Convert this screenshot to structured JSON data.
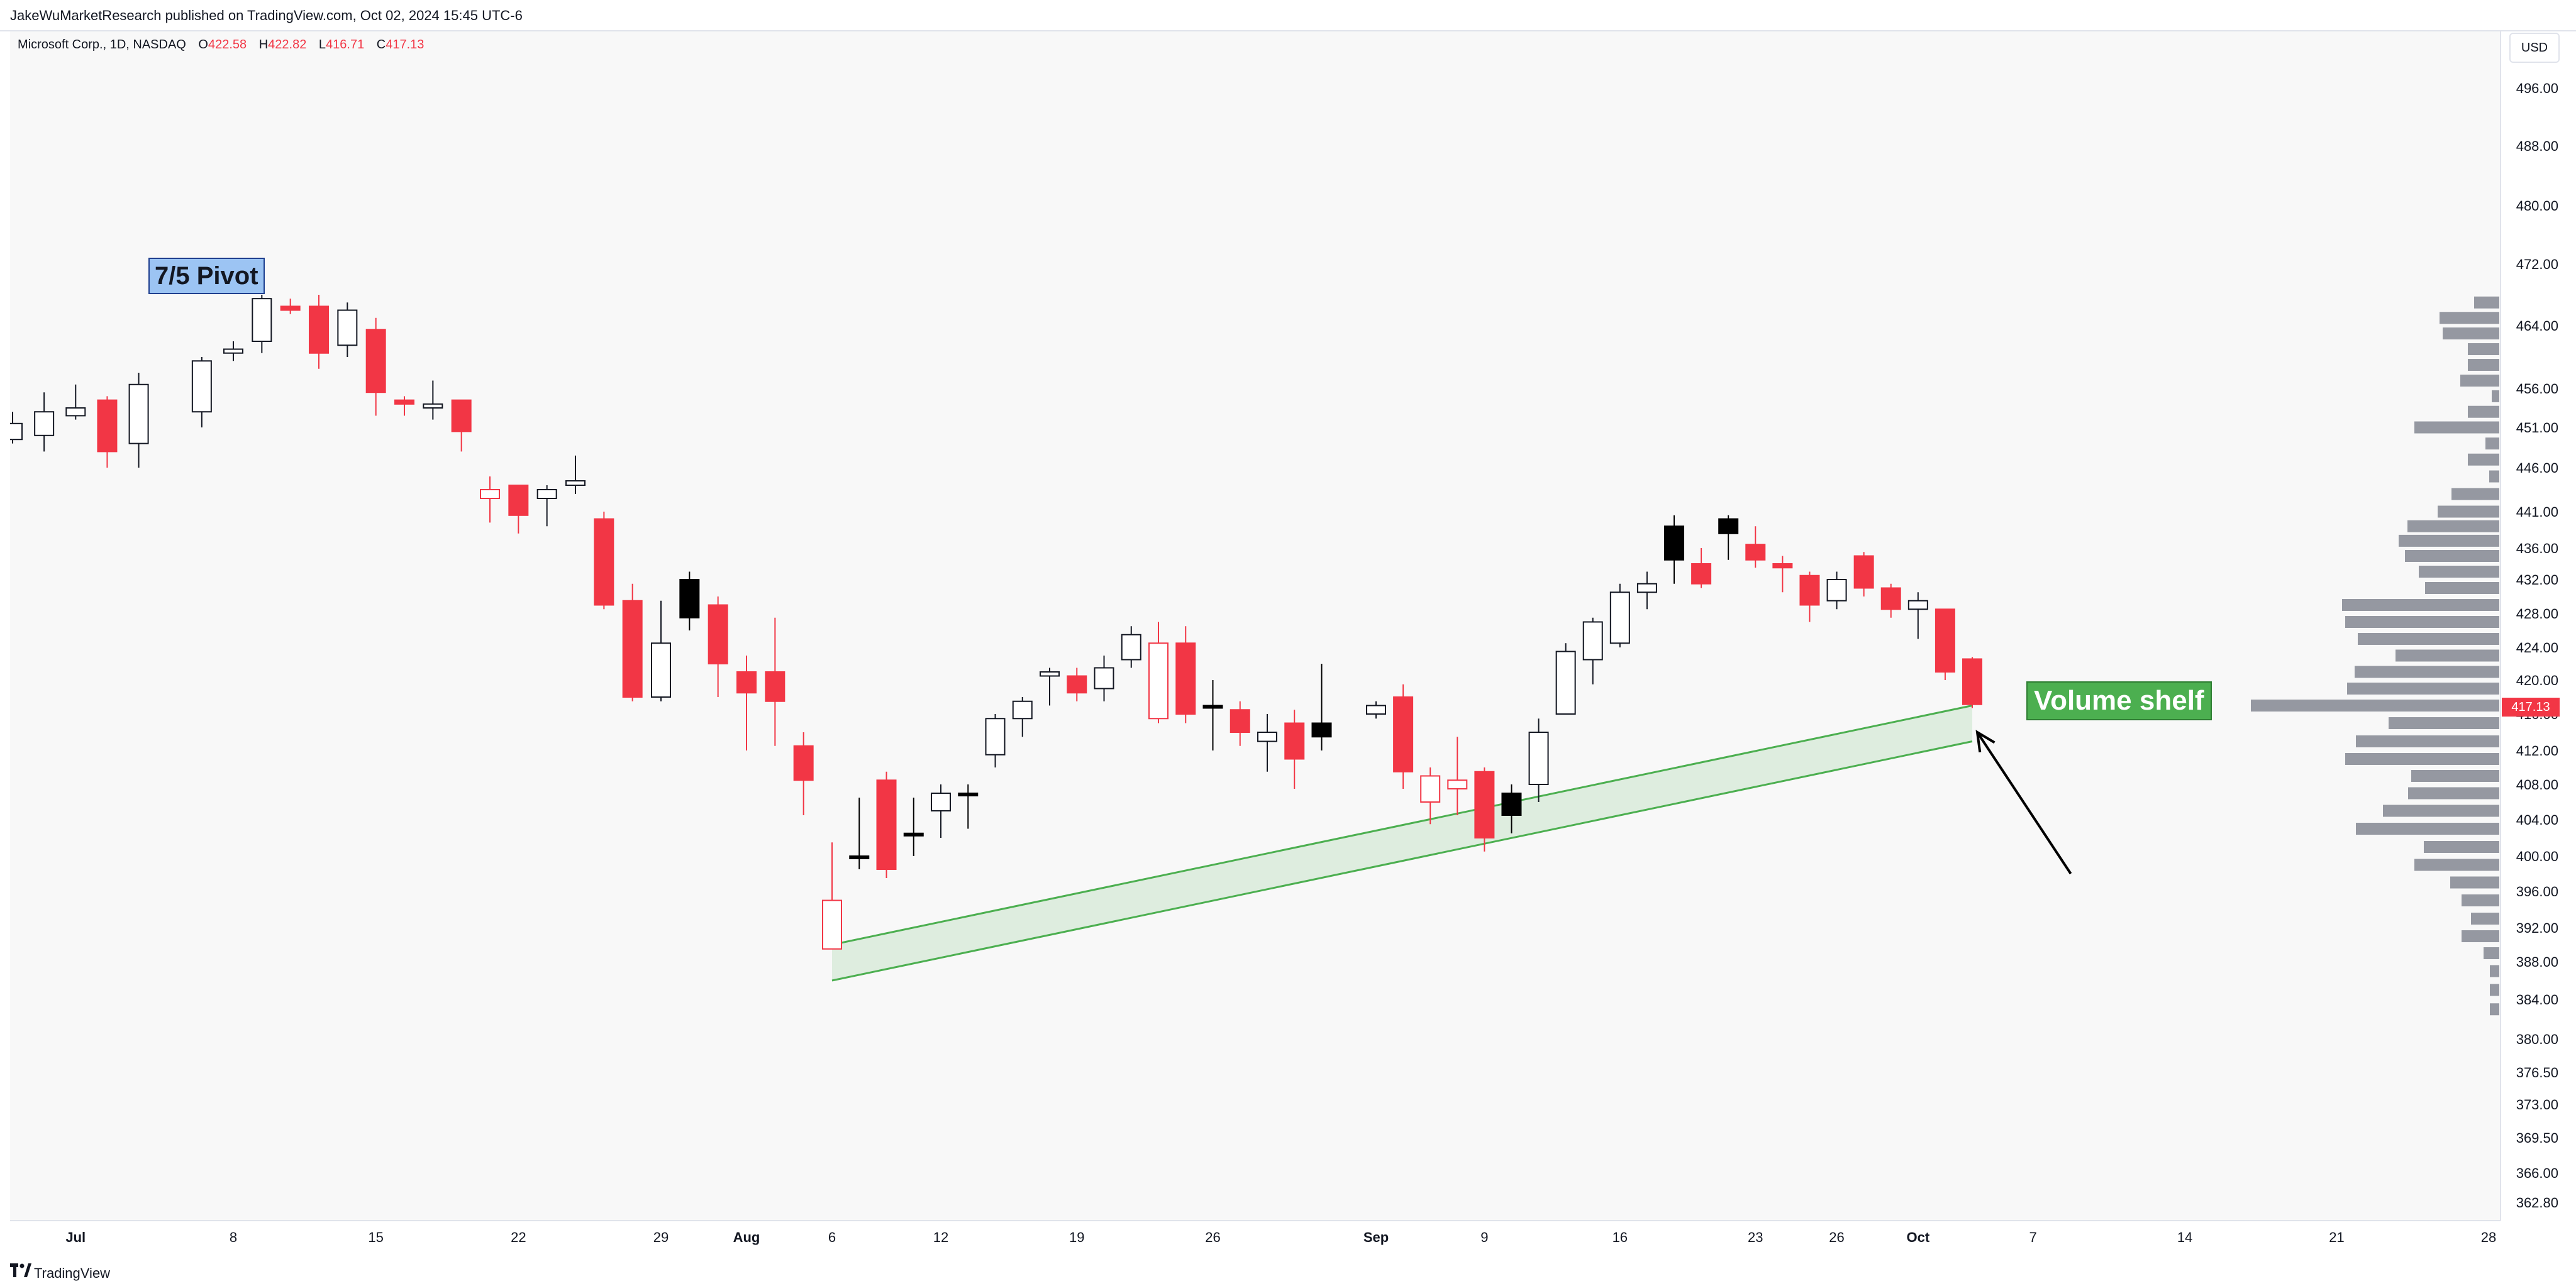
{
  "header": {
    "publish_text": "JakeWuMarketResearch published on TradingView.com, Oct 02, 2024 15:45 UTC-6"
  },
  "legend": {
    "symbol": "Microsoft Corp., 1D, NASDAQ",
    "open_label": "O",
    "open": "422.58",
    "high_label": "H",
    "high": "422.82",
    "low_label": "L",
    "low": "416.71",
    "close_label": "C",
    "close": "417.13"
  },
  "currency": "USD",
  "footer": {
    "brand": "TradingView"
  },
  "colors": {
    "up": "#ffffff",
    "down": "#f23645",
    "black": "#000000",
    "wick": "#131722",
    "volume": "#9598a1",
    "channel": "#4caf50"
  },
  "chart_data": {
    "type": "candlestick",
    "y_axis": {
      "ticks": [
        362.8,
        366.0,
        369.5,
        373.0,
        376.5,
        380.0,
        384.0,
        388.0,
        392.0,
        396.0,
        400.0,
        404.0,
        408.0,
        412.0,
        416.0,
        420.0,
        424.0,
        428.0,
        432.0,
        436.0,
        441.0,
        446.0,
        451.0,
        456.0,
        464.0,
        472.0,
        480.0,
        488.0,
        496.0
      ],
      "tick_labels": [
        "362.80",
        "366.00",
        "369.50",
        "373.00",
        "376.50",
        "380.00",
        "384.00",
        "388.00",
        "392.00",
        "396.00",
        "400.00",
        "404.00",
        "408.00",
        "412.00",
        "416.00",
        "420.00",
        "424.00",
        "428.00",
        "432.00",
        "436.00",
        "441.00",
        "446.00",
        "451.00",
        "456.00",
        "464.00",
        "472.00",
        "480.00",
        "488.00",
        "496.00"
      ]
    },
    "x_axis": {
      "labels": [
        {
          "label": "Jul",
          "date": "2024-07-01",
          "bold": true
        },
        {
          "label": "8",
          "date": "2024-07-08"
        },
        {
          "label": "15",
          "date": "2024-07-15"
        },
        {
          "label": "22",
          "date": "2024-07-22"
        },
        {
          "label": "29",
          "date": "2024-07-29"
        },
        {
          "label": "Aug",
          "date": "2024-08-01",
          "bold": true
        },
        {
          "label": "6",
          "date": "2024-08-06"
        },
        {
          "label": "12",
          "date": "2024-08-12"
        },
        {
          "label": "19",
          "date": "2024-08-19"
        },
        {
          "label": "26",
          "date": "2024-08-26"
        },
        {
          "label": "Sep",
          "date": "2024-09-03",
          "bold": true
        },
        {
          "label": "9",
          "date": "2024-09-09"
        },
        {
          "label": "16",
          "date": "2024-09-16"
        },
        {
          "label": "23",
          "date": "2024-09-23"
        },
        {
          "label": "26",
          "date": "2024-09-26"
        },
        {
          "label": "Oct",
          "date": "2024-10-01",
          "bold": true
        },
        {
          "label": "7",
          "date": "2024-10-07"
        },
        {
          "label": "14",
          "date": "2024-10-14"
        },
        {
          "label": "21",
          "date": "2024-10-21"
        },
        {
          "label": "28",
          "date": "2024-10-28"
        }
      ]
    },
    "candles": [
      {
        "date": "2024-06-27",
        "o": 451.5,
        "h": 453.0,
        "l": 449.0,
        "c": 449.5,
        "color": "up"
      },
      {
        "date": "2024-06-28",
        "o": 450.0,
        "h": 455.5,
        "l": 448.0,
        "c": 453.0,
        "color": "up"
      },
      {
        "date": "2024-07-01",
        "o": 453.5,
        "h": 456.5,
        "l": 452.0,
        "c": 452.5,
        "color": "up"
      },
      {
        "date": "2024-07-02",
        "o": 454.5,
        "h": 455.0,
        "l": 446.0,
        "c": 448.0,
        "color": "down"
      },
      {
        "date": "2024-07-03",
        "o": 449.0,
        "h": 458.0,
        "l": 446.0,
        "c": 456.5,
        "color": "up"
      },
      {
        "date": "2024-07-05",
        "o": 453.0,
        "h": 460.0,
        "l": 451.0,
        "c": 459.5,
        "color": "up"
      },
      {
        "date": "2024-07-08",
        "o": 461.0,
        "h": 462.0,
        "l": 459.5,
        "c": 460.5,
        "color": "up"
      },
      {
        "date": "2024-07-09",
        "o": 462.0,
        "h": 468.0,
        "l": 460.5,
        "c": 467.5,
        "color": "up"
      },
      {
        "date": "2024-07-10",
        "o": 466.5,
        "h": 467.5,
        "l": 465.5,
        "c": 466.0,
        "color": "down"
      },
      {
        "date": "2024-07-11",
        "o": 466.5,
        "h": 468.0,
        "l": 458.5,
        "c": 460.5,
        "color": "down"
      },
      {
        "date": "2024-07-12",
        "o": 461.5,
        "h": 467.0,
        "l": 460.0,
        "c": 466.0,
        "color": "up"
      },
      {
        "date": "2024-07-15",
        "o": 463.5,
        "h": 465.0,
        "l": 452.5,
        "c": 455.5,
        "color": "down"
      },
      {
        "date": "2024-07-16",
        "o": 454.5,
        "h": 455.0,
        "l": 452.5,
        "c": 454.0,
        "color": "down"
      },
      {
        "date": "2024-07-17",
        "o": 453.5,
        "h": 457.0,
        "l": 452.0,
        "c": 454.0,
        "color": "up"
      },
      {
        "date": "2024-07-18",
        "o": 454.5,
        "h": 454.5,
        "l": 448.0,
        "c": 450.5,
        "color": "down"
      },
      {
        "date": "2024-07-19",
        "o": 443.5,
        "h": 445.0,
        "l": 439.5,
        "c": 442.5,
        "color": "down-hollow"
      },
      {
        "date": "2024-07-22",
        "o": 444.0,
        "h": 444.0,
        "l": 438.0,
        "c": 440.5,
        "color": "down"
      },
      {
        "date": "2024-07-23",
        "o": 442.5,
        "h": 444.0,
        "l": 439.0,
        "c": 443.5,
        "color": "up"
      },
      {
        "date": "2024-07-24",
        "o": 444.0,
        "h": 447.5,
        "l": 443.0,
        "c": 444.5,
        "color": "up"
      },
      {
        "date": "2024-07-25",
        "o": 440.0,
        "h": 441.0,
        "l": 428.5,
        "c": 429.0,
        "color": "down"
      },
      {
        "date": "2024-07-26",
        "o": 429.5,
        "h": 431.5,
        "l": 417.5,
        "c": 418.0,
        "color": "down"
      },
      {
        "date": "2024-07-29",
        "o": 418.0,
        "h": 429.5,
        "l": 417.5,
        "c": 424.5,
        "color": "up"
      },
      {
        "date": "2024-07-30",
        "o": 427.5,
        "h": 433.0,
        "l": 426.0,
        "c": 432.0,
        "color": "black"
      },
      {
        "date": "2024-07-31",
        "o": 429.0,
        "h": 430.0,
        "l": 418.0,
        "c": 422.0,
        "color": "down"
      },
      {
        "date": "2024-08-01",
        "o": 421.0,
        "h": 423.0,
        "l": 412.0,
        "c": 418.5,
        "color": "down"
      },
      {
        "date": "2024-08-02",
        "o": 421.0,
        "h": 427.5,
        "l": 412.5,
        "c": 417.5,
        "color": "down"
      },
      {
        "date": "2024-08-05",
        "o": 412.5,
        "h": 414.0,
        "l": 404.5,
        "c": 408.5,
        "color": "down"
      },
      {
        "date": "2024-08-06",
        "o": 395.0,
        "h": 401.5,
        "l": 390.0,
        "c": 389.5,
        "color": "down-hollow"
      },
      {
        "date": "2024-08-07",
        "o": 400.0,
        "h": 406.5,
        "l": 398.5,
        "c": 400.0,
        "color": "black"
      },
      {
        "date": "2024-08-08",
        "o": 408.5,
        "h": 409.5,
        "l": 397.5,
        "c": 398.5,
        "color": "down"
      },
      {
        "date": "2024-08-09",
        "o": 402.5,
        "h": 406.5,
        "l": 400.0,
        "c": 402.5,
        "color": "black"
      },
      {
        "date": "2024-08-12",
        "o": 405.0,
        "h": 408.0,
        "l": 402.0,
        "c": 407.0,
        "color": "up"
      },
      {
        "date": "2024-08-13",
        "o": 407.0,
        "h": 408.0,
        "l": 403.0,
        "c": 407.0,
        "color": "black"
      },
      {
        "date": "2024-08-14",
        "o": 411.5,
        "h": 416.0,
        "l": 410.0,
        "c": 415.5,
        "color": "up"
      },
      {
        "date": "2024-08-15",
        "o": 415.5,
        "h": 418.0,
        "l": 413.5,
        "c": 417.5,
        "color": "up"
      },
      {
        "date": "2024-08-16",
        "o": 420.5,
        "h": 421.5,
        "l": 417.0,
        "c": 421.0,
        "color": "up"
      },
      {
        "date": "2024-08-19",
        "o": 420.5,
        "h": 421.5,
        "l": 417.5,
        "c": 418.5,
        "color": "down"
      },
      {
        "date": "2024-08-20",
        "o": 419.0,
        "h": 423.0,
        "l": 417.5,
        "c": 421.5,
        "color": "up"
      },
      {
        "date": "2024-08-21",
        "o": 422.5,
        "h": 426.5,
        "l": 421.5,
        "c": 425.5,
        "color": "up"
      },
      {
        "date": "2024-08-22",
        "o": 424.5,
        "h": 427.0,
        "l": 415.0,
        "c": 415.5,
        "color": "down-hollow"
      },
      {
        "date": "2024-08-23",
        "o": 424.5,
        "h": 426.5,
        "l": 415.0,
        "c": 416.0,
        "color": "down"
      },
      {
        "date": "2024-08-26",
        "o": 417.0,
        "h": 420.0,
        "l": 412.0,
        "c": 417.0,
        "color": "black"
      },
      {
        "date": "2024-08-27",
        "o": 416.5,
        "h": 417.5,
        "l": 412.5,
        "c": 414.0,
        "color": "down"
      },
      {
        "date": "2024-08-28",
        "o": 414.0,
        "h": 416.0,
        "l": 409.5,
        "c": 413.0,
        "color": "up"
      },
      {
        "date": "2024-08-29",
        "o": 415.0,
        "h": 416.5,
        "l": 407.5,
        "c": 411.0,
        "color": "down"
      },
      {
        "date": "2024-08-30",
        "o": 413.5,
        "h": 422.0,
        "l": 412.0,
        "c": 415.0,
        "color": "black"
      },
      {
        "date": "2024-09-03",
        "o": 416.0,
        "h": 417.5,
        "l": 415.5,
        "c": 417.0,
        "color": "up"
      },
      {
        "date": "2024-09-04",
        "o": 418.0,
        "h": 419.5,
        "l": 407.5,
        "c": 409.5,
        "color": "down"
      },
      {
        "date": "2024-09-05",
        "o": 409.0,
        "h": 410.0,
        "l": 403.5,
        "c": 406.0,
        "color": "down-hollow"
      },
      {
        "date": "2024-09-06",
        "o": 408.5,
        "h": 413.5,
        "l": 404.5,
        "c": 407.5,
        "color": "down-hollow"
      },
      {
        "date": "2024-09-09",
        "o": 409.5,
        "h": 410.0,
        "l": 400.5,
        "c": 402.0,
        "color": "down"
      },
      {
        "date": "2024-09-10",
        "o": 404.5,
        "h": 408.0,
        "l": 402.5,
        "c": 407.0,
        "color": "black"
      },
      {
        "date": "2024-09-11",
        "o": 408.0,
        "h": 415.5,
        "l": 406.0,
        "c": 414.0,
        "color": "up"
      },
      {
        "date": "2024-09-12",
        "o": 416.0,
        "h": 424.5,
        "l": 416.0,
        "c": 423.5,
        "color": "up"
      },
      {
        "date": "2024-09-13",
        "o": 422.5,
        "h": 427.5,
        "l": 419.5,
        "c": 427.0,
        "color": "up"
      },
      {
        "date": "2024-09-16",
        "o": 424.5,
        "h": 431.5,
        "l": 424.0,
        "c": 430.5,
        "color": "up"
      },
      {
        "date": "2024-09-17",
        "o": 430.5,
        "h": 433.0,
        "l": 428.5,
        "c": 431.5,
        "color": "up"
      },
      {
        "date": "2024-09-18",
        "o": 434.5,
        "h": 440.5,
        "l": 431.5,
        "c": 439.0,
        "color": "black"
      },
      {
        "date": "2024-09-19",
        "o": 434.0,
        "h": 436.0,
        "l": 431.0,
        "c": 431.5,
        "color": "down"
      },
      {
        "date": "2024-09-20",
        "o": 438.0,
        "h": 440.5,
        "l": 434.5,
        "c": 440.0,
        "color": "black"
      },
      {
        "date": "2024-09-23",
        "o": 436.5,
        "h": 439.0,
        "l": 433.5,
        "c": 434.5,
        "color": "down"
      },
      {
        "date": "2024-09-24",
        "o": 434.0,
        "h": 435.0,
        "l": 430.5,
        "c": 433.5,
        "color": "down"
      },
      {
        "date": "2024-09-25",
        "o": 432.5,
        "h": 433.0,
        "l": 427.0,
        "c": 429.0,
        "color": "down"
      },
      {
        "date": "2024-09-26",
        "o": 429.5,
        "h": 433.0,
        "l": 428.5,
        "c": 432.0,
        "color": "up"
      },
      {
        "date": "2024-09-27",
        "o": 435.0,
        "h": 435.5,
        "l": 430.0,
        "c": 431.0,
        "color": "down"
      },
      {
        "date": "2024-09-30",
        "o": 431.0,
        "h": 431.5,
        "l": 427.5,
        "c": 428.5,
        "color": "down"
      },
      {
        "date": "2024-10-01",
        "o": 428.5,
        "h": 430.5,
        "l": 425.0,
        "c": 429.5,
        "color": "up"
      },
      {
        "date": "2024-10-02",
        "o": 428.5,
        "h": 428.5,
        "l": 420.0,
        "c": 421.0,
        "color": "down"
      },
      {
        "date": "2024-10-03",
        "o": 422.58,
        "h": 422.82,
        "l": 416.71,
        "c": 417.13,
        "color": "down"
      }
    ],
    "volume_profile": [
      {
        "price": 467.0,
        "value": 0.4
      },
      {
        "price": 465.0,
        "value": 0.95
      },
      {
        "price": 463.0,
        "value": 0.9
      },
      {
        "price": 461.0,
        "value": 0.5
      },
      {
        "price": 459.0,
        "value": 0.5
      },
      {
        "price": 457.0,
        "value": 0.62
      },
      {
        "price": 455.0,
        "value": 0.12
      },
      {
        "price": 453.0,
        "value": 0.5
      },
      {
        "price": 451.0,
        "value": 1.35
      },
      {
        "price": 449.0,
        "value": 0.22
      },
      {
        "price": 447.0,
        "value": 0.5
      },
      {
        "price": 445.0,
        "value": 0.16
      },
      {
        "price": 443.0,
        "value": 0.76
      },
      {
        "price": 441.0,
        "value": 0.98
      },
      {
        "price": 439.0,
        "value": 1.46
      },
      {
        "price": 437.0,
        "value": 1.6
      },
      {
        "price": 435.0,
        "value": 1.5
      },
      {
        "price": 433.0,
        "value": 1.28
      },
      {
        "price": 431.0,
        "value": 1.18
      },
      {
        "price": 429.0,
        "value": 2.5
      },
      {
        "price": 427.0,
        "value": 2.45
      },
      {
        "price": 425.0,
        "value": 2.25
      },
      {
        "price": 423.0,
        "value": 1.65
      },
      {
        "price": 421.0,
        "value": 2.3
      },
      {
        "price": 419.0,
        "value": 2.42
      },
      {
        "price": 417.0,
        "value": 3.95
      },
      {
        "price": 415.0,
        "value": 1.76
      },
      {
        "price": 413.0,
        "value": 2.28
      },
      {
        "price": 411.0,
        "value": 2.45
      },
      {
        "price": 409.0,
        "value": 1.4
      },
      {
        "price": 407.0,
        "value": 1.45
      },
      {
        "price": 405.0,
        "value": 1.85
      },
      {
        "price": 403.0,
        "value": 2.28
      },
      {
        "price": 401.0,
        "value": 1.2
      },
      {
        "price": 399.0,
        "value": 1.35
      },
      {
        "price": 397.0,
        "value": 0.78
      },
      {
        "price": 395.0,
        "value": 0.6
      },
      {
        "price": 393.0,
        "value": 0.45
      },
      {
        "price": 391.0,
        "value": 0.6
      },
      {
        "price": 389.0,
        "value": 0.25
      },
      {
        "price": 387.0,
        "value": 0.15
      },
      {
        "price": 385.0,
        "value": 0.15
      },
      {
        "price": 383.0,
        "value": 0.15
      }
    ],
    "channel": {
      "top": [
        {
          "date": "2024-08-06",
          "price": 390.0
        },
        {
          "date": "2024-10-03",
          "price": 417.0
        }
      ],
      "bottom": [
        {
          "date": "2024-08-06",
          "price": 386.0
        },
        {
          "date": "2024-10-03",
          "price": 413.0
        }
      ]
    },
    "annotations": [
      {
        "text": "7/5 Pivot",
        "date": "2024-07-08",
        "price": 468.5
      },
      {
        "text": "Volume shelf",
        "date": "2024-10-14",
        "price": 416.5
      }
    ],
    "arrow": {
      "from": {
        "date": "2024-10-07",
        "price": 398.0
      },
      "to": {
        "date": "2024-10-03",
        "price": 414.0
      }
    },
    "last_price": "417.13"
  }
}
